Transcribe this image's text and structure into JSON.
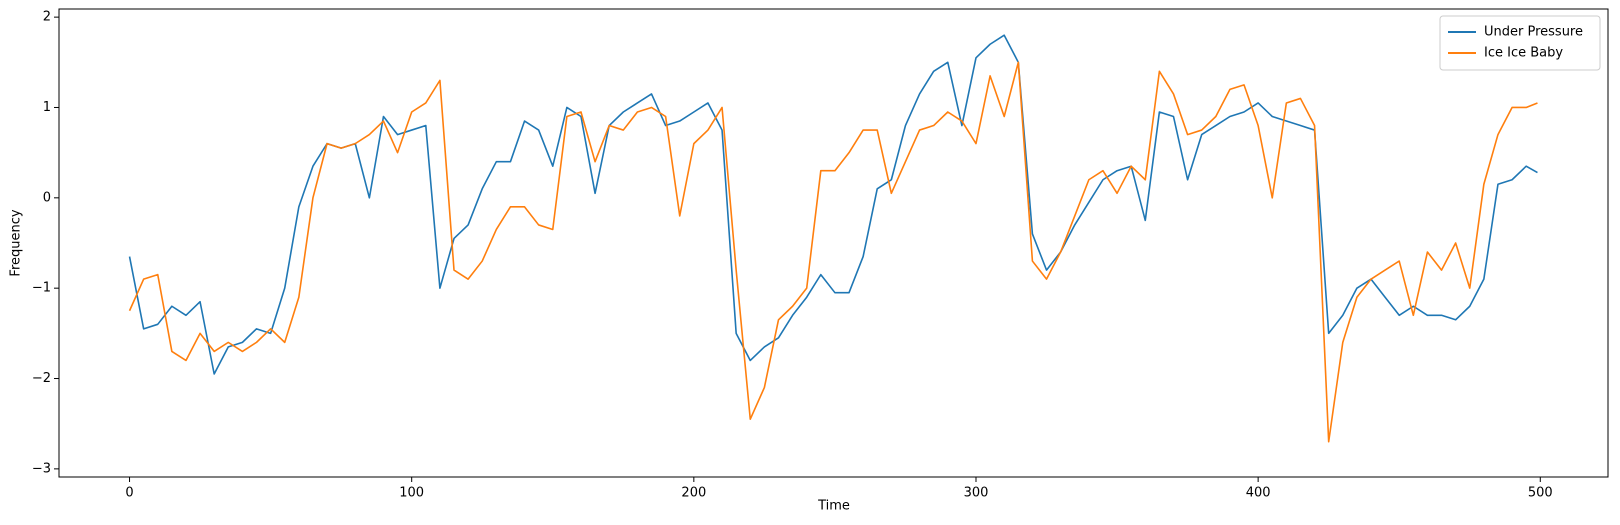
{
  "chart_data": {
    "type": "line",
    "xlabel": "Time",
    "ylabel": "Frequency",
    "legend": "upper right",
    "x": [
      0,
      5,
      10,
      15,
      20,
      25,
      30,
      35,
      40,
      45,
      50,
      55,
      60,
      65,
      70,
      75,
      80,
      85,
      90,
      95,
      100,
      105,
      110,
      115,
      120,
      125,
      130,
      135,
      140,
      145,
      150,
      155,
      160,
      165,
      170,
      175,
      180,
      185,
      190,
      195,
      200,
      205,
      210,
      215,
      220,
      225,
      230,
      235,
      240,
      245,
      250,
      255,
      260,
      265,
      270,
      275,
      280,
      285,
      290,
      295,
      300,
      305,
      310,
      315,
      320,
      325,
      330,
      335,
      340,
      345,
      350,
      355,
      360,
      365,
      370,
      375,
      380,
      385,
      390,
      395,
      400,
      405,
      410,
      415,
      420,
      425,
      430,
      435,
      440,
      445,
      450,
      455,
      460,
      465,
      470,
      475,
      480,
      485,
      490,
      495,
      499
    ],
    "series": [
      {
        "name": "Under Pressure",
        "color": "#1f77b4",
        "values": [
          -0.65,
          -1.45,
          -1.4,
          -1.2,
          -1.3,
          -1.15,
          -1.95,
          -1.65,
          -1.6,
          -1.45,
          -1.5,
          -1.0,
          -0.1,
          0.35,
          0.6,
          0.55,
          0.6,
          0.0,
          0.9,
          0.7,
          0.75,
          0.8,
          -1.0,
          -0.45,
          -0.3,
          0.1,
          0.4,
          0.4,
          0.85,
          0.75,
          0.35,
          1.0,
          0.9,
          0.05,
          0.8,
          0.95,
          1.05,
          1.15,
          0.8,
          0.85,
          0.95,
          1.05,
          0.75,
          -1.5,
          -1.8,
          -1.65,
          -1.55,
          -1.3,
          -1.1,
          -0.85,
          -1.05,
          -1.05,
          -0.65,
          0.1,
          0.2,
          0.8,
          1.15,
          1.4,
          1.5,
          0.8,
          1.55,
          1.7,
          1.8,
          1.5,
          -0.4,
          -0.8,
          -0.6,
          -0.3,
          -0.05,
          0.2,
          0.3,
          0.35,
          -0.25,
          0.95,
          0.9,
          0.2,
          0.7,
          0.8,
          0.9,
          0.95,
          1.05,
          0.9,
          0.85,
          0.8,
          0.75,
          -1.5,
          -1.3,
          -1.0,
          -0.9,
          -1.1,
          -1.3,
          -1.2,
          -1.3,
          -1.3,
          -1.35,
          -1.2,
          -0.9,
          0.15,
          0.2,
          0.35,
          0.28
        ]
      },
      {
        "name": "Ice Ice Baby",
        "color": "#ff7f0e",
        "values": [
          -1.25,
          -0.9,
          -0.85,
          -1.7,
          -1.8,
          -1.5,
          -1.7,
          -1.6,
          -1.7,
          -1.6,
          -1.45,
          -1.6,
          -1.1,
          0.0,
          0.6,
          0.55,
          0.6,
          0.7,
          0.85,
          0.5,
          0.95,
          1.05,
          1.3,
          -0.8,
          -0.9,
          -0.7,
          -0.35,
          -0.1,
          -0.1,
          -0.3,
          -0.35,
          0.9,
          0.95,
          0.4,
          0.8,
          0.75,
          0.95,
          1.0,
          0.9,
          -0.2,
          0.6,
          0.75,
          1.0,
          -0.8,
          -2.45,
          -2.1,
          -1.35,
          -1.2,
          -1.0,
          0.3,
          0.3,
          0.5,
          0.75,
          0.75,
          0.05,
          0.4,
          0.75,
          0.8,
          0.95,
          0.85,
          0.6,
          1.35,
          0.9,
          1.5,
          -0.7,
          -0.9,
          -0.6,
          -0.2,
          0.2,
          0.3,
          0.05,
          0.35,
          0.2,
          1.4,
          1.15,
          0.7,
          0.75,
          0.9,
          1.2,
          1.25,
          0.8,
          0.0,
          1.05,
          1.1,
          0.8,
          -2.7,
          -1.6,
          -1.1,
          -0.9,
          -0.8,
          -0.7,
          -1.3,
          -0.6,
          -0.8,
          -0.5,
          -1.0,
          0.15,
          0.7,
          1.0,
          1.0,
          1.05
        ]
      }
    ],
    "xlim": [
      -25,
      524
    ],
    "ylim": [
      -3.09,
      2.09
    ],
    "xticks": [
      0,
      100,
      200,
      300,
      400,
      500
    ],
    "yticks": [
      {
        "value": -3,
        "label": "−3"
      },
      {
        "value": -2,
        "label": "−2"
      },
      {
        "value": -1,
        "label": "−1"
      },
      0,
      1,
      2
    ]
  }
}
